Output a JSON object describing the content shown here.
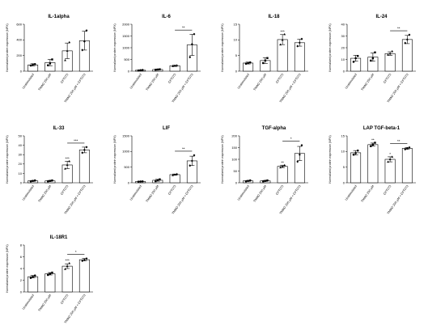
{
  "chart_data": [
    {
      "type": "bar",
      "title": "IL-1alpha",
      "ylabel": "Normalized protein expression (NPX)",
      "categories": [
        "Unstimulated",
        "TMAO 200 µM",
        "CFT073",
        "TMAO 200 µM + CFT073"
      ],
      "values": [
        80,
        110,
        260,
        390
      ],
      "errors": [
        15,
        40,
        100,
        120
      ],
      "points": [
        [
          72,
          85,
          90
        ],
        [
          75,
          100,
          150
        ],
        [
          140,
          260,
          370
        ],
        [
          270,
          380,
          520
        ]
      ],
      "ylim": [
        0,
        600
      ],
      "yticks": [
        0,
        200,
        400,
        600
      ],
      "stars": [
        "",
        "",
        "",
        ""
      ],
      "brackets": []
    },
    {
      "type": "bar",
      "title": "IL-6",
      "ylabel": "Normalized protein expression (NPX)",
      "categories": [
        "Unstimulated",
        "TMAO 200 µM",
        "CFT073",
        "TMAO 200 µM + CFT073"
      ],
      "values": [
        40,
        70,
        230,
        1120
      ],
      "errors": [
        10,
        15,
        30,
        450
      ],
      "points": [
        [
          30,
          40,
          50
        ],
        [
          60,
          70,
          80
        ],
        [
          210,
          230,
          250
        ],
        [
          600,
          1150,
          1580
        ]
      ],
      "ylim": [
        0,
        2000
      ],
      "yticks": [
        0,
        500,
        1000,
        1500,
        2000
      ],
      "stars": [
        "",
        "",
        "",
        ""
      ],
      "brackets": [
        {
          "from": 2,
          "to": 3,
          "label": "**"
        }
      ]
    },
    {
      "type": "bar",
      "title": "IL-18",
      "ylabel": "Normalized protein expression (NPX)",
      "categories": [
        "Unstimulated",
        "TMAO 200 µM",
        "CFT073",
        "TMAO 200 µM + CFT073"
      ],
      "values": [
        2.6,
        3.4,
        10.1,
        9.1
      ],
      "errors": [
        0.3,
        0.9,
        1.6,
        1.1
      ],
      "points": [
        [
          2.4,
          2.6,
          2.8
        ],
        [
          2.6,
          3.4,
          4.2
        ],
        [
          8.5,
          10.0,
          11.8
        ],
        [
          8.0,
          9.1,
          10.3
        ]
      ],
      "ylim": [
        0,
        15
      ],
      "yticks": [
        0,
        5,
        10,
        15
      ],
      "stars": [
        "",
        "",
        "***",
        ""
      ],
      "brackets": []
    },
    {
      "type": "bar",
      "title": "IL-24",
      "ylabel": "Normalized protein expression (NPX)",
      "categories": [
        "Unstimulated",
        "TMAO 200 µM",
        "CFT073",
        "TMAO 200 µM + CFT073"
      ],
      "values": [
        11,
        12,
        15,
        27
      ],
      "errors": [
        2.5,
        3.5,
        1.5,
        3.5
      ],
      "points": [
        [
          8,
          11,
          13
        ],
        [
          9,
          11,
          16
        ],
        [
          14,
          15,
          17
        ],
        [
          24,
          27,
          31
        ]
      ],
      "ylim": [
        0,
        40
      ],
      "yticks": [
        0,
        10,
        20,
        30,
        40
      ],
      "stars": [
        "",
        "",
        "",
        ""
      ],
      "brackets": [
        {
          "from": 2,
          "to": 3,
          "label": "**"
        }
      ]
    },
    {
      "type": "bar",
      "title": "IL-33",
      "ylabel": "Normalized protein expression (NPX)",
      "categories": [
        "Unstimulated",
        "TMAO 200 µM",
        "CFT073",
        "TMAO 200 µM + CFT073"
      ],
      "values": [
        2,
        2,
        19,
        35
      ],
      "errors": [
        0.5,
        0.5,
        4,
        3
      ],
      "points": [
        [
          1.5,
          2,
          2.5
        ],
        [
          1.5,
          2,
          2.5
        ],
        [
          15,
          19,
          23
        ],
        [
          32,
          35,
          38
        ]
      ],
      "ylim": [
        0,
        50
      ],
      "yticks": [
        0,
        10,
        20,
        30,
        40,
        50
      ],
      "stars": [
        "",
        "",
        "***",
        ""
      ],
      "brackets": [
        {
          "from": 2,
          "to": 3,
          "label": "***"
        }
      ]
    },
    {
      "type": "bar",
      "title": "LIF",
      "ylabel": "Normalized protein expression (NPX)",
      "categories": [
        "Unstimulated",
        "TMAO 200 µM",
        "CFT073",
        "TMAO 200 µM + CFT073"
      ],
      "values": [
        40,
        80,
        260,
        700
      ],
      "errors": [
        8,
        30,
        20,
        150
      ],
      "points": [
        [
          35,
          40,
          45
        ],
        [
          50,
          80,
          110
        ],
        [
          240,
          260,
          280
        ],
        [
          550,
          700,
          880
        ]
      ],
      "ylim": [
        0,
        1500
      ],
      "yticks": [
        0,
        500,
        1000,
        1500
      ],
      "stars": [
        "",
        "",
        "",
        ""
      ],
      "brackets": [
        {
          "from": 2,
          "to": 3,
          "label": "**"
        }
      ]
    },
    {
      "type": "bar",
      "title": "TGF-alpha",
      "ylabel": "Normalized protein expression (NPX)",
      "categories": [
        "Unstimulated",
        "TMAO 200 µM",
        "CFT073",
        "TMAO 200 µM + CFT073"
      ],
      "values": [
        8,
        8,
        70,
        125
      ],
      "errors": [
        2,
        2,
        5,
        30
      ],
      "points": [
        [
          6,
          8,
          10
        ],
        [
          6,
          8,
          10
        ],
        [
          65,
          70,
          75
        ],
        [
          90,
          120,
          160
        ]
      ],
      "ylim": [
        0,
        200
      ],
      "yticks": [
        0,
        50,
        100,
        150,
        200
      ],
      "stars": [
        "",
        "",
        "**",
        ""
      ],
      "brackets": [
        {
          "from": 2,
          "to": 3,
          "label": "*"
        }
      ]
    },
    {
      "type": "bar",
      "title": "LAP TGF-beta-1",
      "ylabel": "Normalized protein expression (NPX)",
      "categories": [
        "Unstimulated",
        "TMAO 200 µM",
        "CFT073",
        "TMAO 200 µM + CFT073"
      ],
      "values": [
        9.6,
        12.2,
        7.5,
        11
      ],
      "errors": [
        0.7,
        0.5,
        0.8,
        0.3
      ],
      "points": [
        [
          9,
          9.5,
          10.3
        ],
        [
          11.7,
          12.2,
          12.8
        ],
        [
          6.7,
          7.5,
          8.3
        ],
        [
          10.7,
          11,
          11.3
        ]
      ],
      "ylim": [
        0,
        15
      ],
      "yticks": [
        0,
        5,
        10,
        15
      ],
      "stars": [
        "",
        "**",
        "*",
        ""
      ],
      "brackets": [
        {
          "from": 2,
          "to": 3,
          "label": "**"
        }
      ]
    },
    {
      "type": "bar",
      "title": "IL-18R1",
      "ylabel": "Normalized protein expression (NPX)",
      "categories": [
        "Unstimulated",
        "TMAO 200 µM",
        "CFT073",
        "TMAO 200 µM + CFT073"
      ],
      "values": [
        2.6,
        3.1,
        4.4,
        5.5
      ],
      "errors": [
        0.2,
        0.2,
        0.4,
        0.2
      ],
      "points": [
        [
          2.4,
          2.6,
          2.8
        ],
        [
          2.9,
          3.1,
          3.3
        ],
        [
          3.9,
          4.4,
          4.9
        ],
        [
          5.3,
          5.5,
          5.7
        ]
      ],
      "ylim": [
        0,
        8
      ],
      "yticks": [
        0,
        2,
        4,
        6,
        8
      ],
      "stars": [
        "",
        "",
        "***",
        ""
      ],
      "brackets": [
        {
          "from": 2,
          "to": 3,
          "label": "*"
        }
      ]
    }
  ]
}
